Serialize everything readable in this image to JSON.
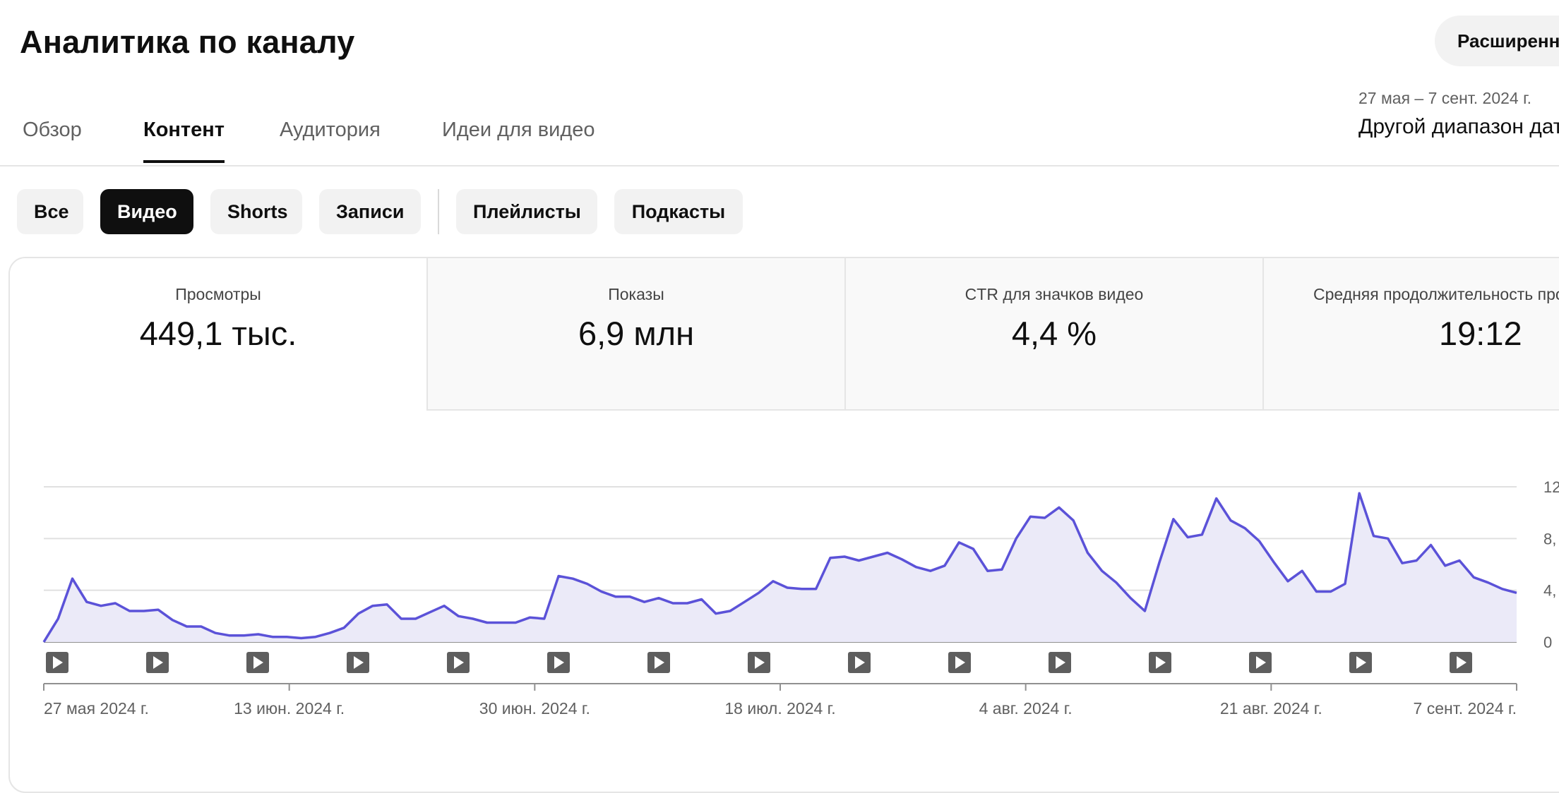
{
  "header": {
    "title": "Аналитика по каналу",
    "advanced_button": "Расширенный режим"
  },
  "tabs": [
    {
      "label": "Обзор",
      "active": false
    },
    {
      "label": "Контент",
      "active": true
    },
    {
      "label": "Аудитория",
      "active": false
    },
    {
      "label": "Идеи для видео",
      "active": false
    }
  ],
  "date_picker": {
    "range": "27 мая – 7 сент. 2024 г.",
    "label": "Другой диапазон дат"
  },
  "chips": [
    {
      "label": "Все",
      "active": false
    },
    {
      "label": "Видео",
      "active": true
    },
    {
      "label": "Shorts",
      "active": false
    },
    {
      "label": "Записи",
      "active": false
    },
    {
      "label": "Плейлисты",
      "active": false
    },
    {
      "label": "Подкасты",
      "active": false
    }
  ],
  "metrics": [
    {
      "label": "Просмотры",
      "value": "449,1 тыс.",
      "active": true
    },
    {
      "label": "Показы",
      "value": "6,9 млн",
      "active": false
    },
    {
      "label": "CTR для значков видео",
      "value": "4,4 %",
      "active": false
    },
    {
      "label": "Средняя продолжительность просмотра",
      "value": "19:12",
      "active": false
    }
  ],
  "colors": {
    "line": "#5b52d8",
    "area": "#ebeaf8",
    "active_chip": "#0f0f0f",
    "video_marker": "#5e5e5e"
  },
  "chart_data": {
    "type": "area",
    "series": [
      {
        "values": [
          0,
          1.8,
          4.9,
          3.1,
          2.8,
          3.0,
          2.4,
          2.4,
          2.5,
          1.7,
          1.2,
          1.2,
          0.7,
          0.5,
          0.5,
          0.6,
          0.4,
          0.4,
          0.3,
          0.4,
          0.7,
          1.1,
          2.2,
          2.8,
          2.9,
          1.8,
          1.8,
          2.3,
          2.8,
          2.0,
          1.8,
          1.5,
          1.5,
          1.5,
          1.9,
          1.8,
          5.1,
          4.9,
          4.5,
          3.9,
          3.5,
          3.5,
          3.1,
          3.4,
          3.0,
          3.0,
          3.3,
          2.2,
          2.4,
          3.1,
          3.8,
          4.7,
          4.2,
          4.1,
          4.1,
          6.5,
          6.6,
          6.3,
          6.6,
          6.9,
          6.4,
          5.8,
          5.5,
          5.9,
          7.7,
          7.2,
          5.5,
          5.6,
          8.0,
          9.7,
          9.6,
          10.4,
          9.4,
          6.9,
          5.5,
          4.6,
          3.4,
          2.4,
          6.1,
          9.5,
          8.1,
          8.3,
          11.1,
          9.4,
          8.8,
          7.8,
          6.2,
          4.7,
          5.5,
          3.9,
          3.9,
          4.5,
          11.5,
          8.2,
          8.0,
          6.1,
          6.3,
          7.5,
          5.9,
          6.3,
          5.0,
          4.6,
          4.1,
          3.8
        ]
      }
    ],
    "y_ticks": [
      "0",
      "4,",
      "8,",
      "12"
    ],
    "ylim": [
      0,
      12
    ],
    "x_ticks": [
      "27 мая 2024 г.",
      "13 июн. 2024 г.",
      "30 июн. 2024 г.",
      "18 июл. 2024 г.",
      "4 авг. 2024 г.",
      "21 авг. 2024 г.",
      "7 сент. 2024 г."
    ],
    "grid": true,
    "video_markers": 15
  }
}
